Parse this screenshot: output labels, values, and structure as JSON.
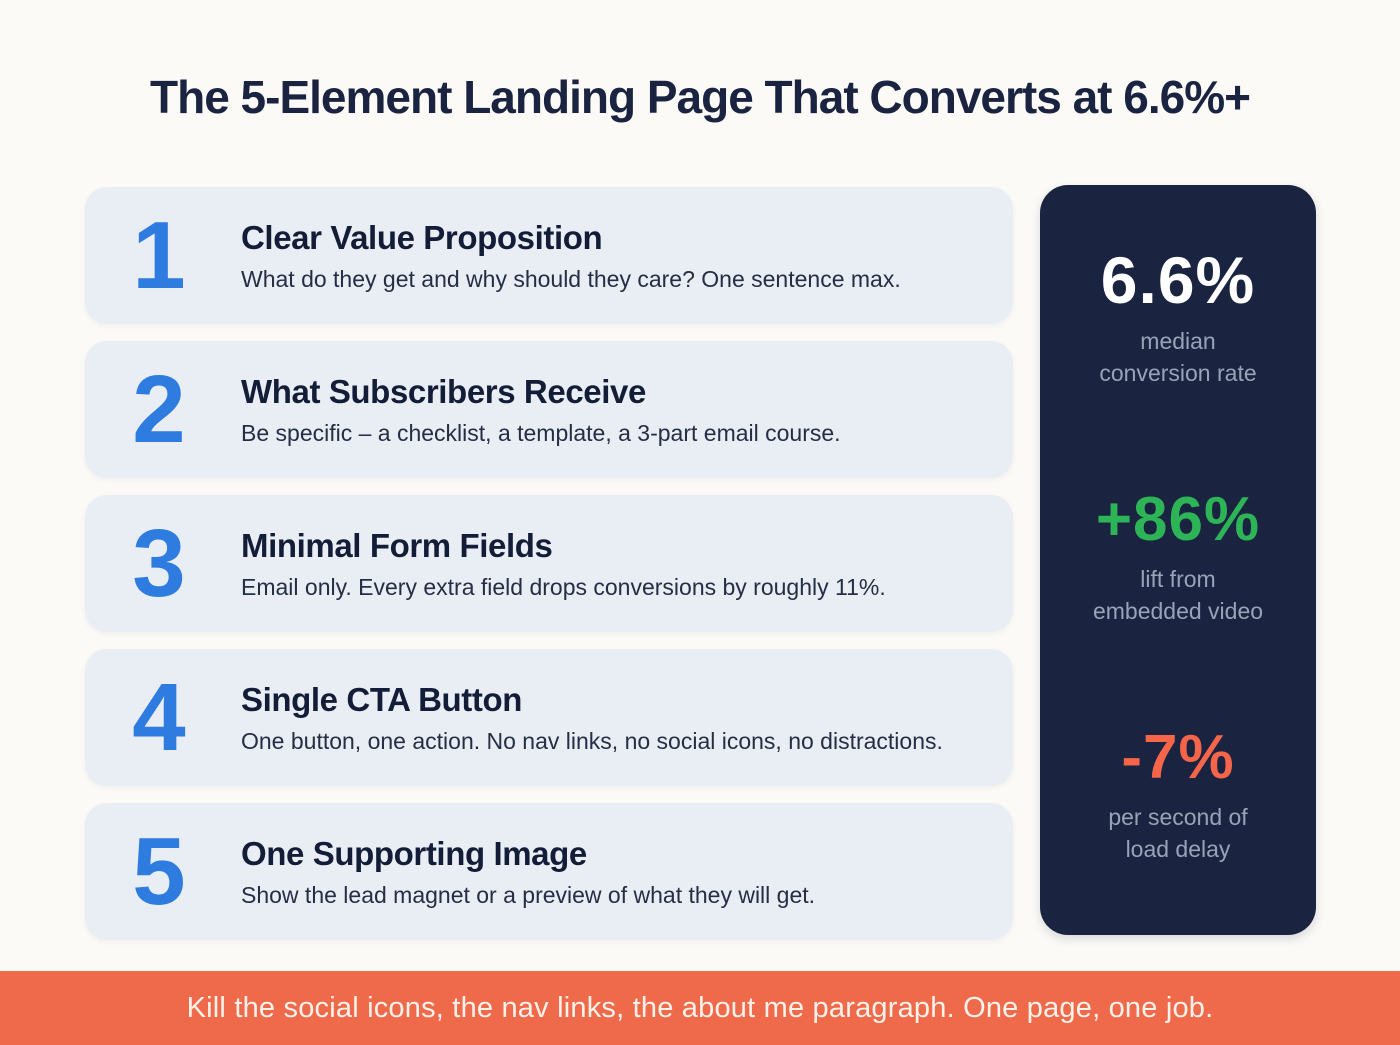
{
  "header": {
    "title": "The 5-Element Landing Page That Converts at 6.6%+"
  },
  "steps": [
    {
      "number": "1",
      "title": "Clear Value Proposition",
      "description": "What do they get and why should they care? One sentence max."
    },
    {
      "number": "2",
      "title": "What Subscribers Receive",
      "description": "Be specific – a checklist, a template, a 3-part email course."
    },
    {
      "number": "3",
      "title": "Minimal Form Fields",
      "description": "Email only. Every extra field drops conversions by roughly 11%."
    },
    {
      "number": "4",
      "title": "Single CTA Button",
      "description": "One button, one action. No nav links, no social icons, no distractions."
    },
    {
      "number": "5",
      "title": "One Supporting Image",
      "description": "Show the lead magnet or a preview of what they will get."
    }
  ],
  "stats_panel": {
    "stats": [
      {
        "value": "6.6%",
        "label": "median\nconversion rate",
        "color": "#ffffff"
      },
      {
        "value": "+86%",
        "label": "lift from\nembedded video",
        "color": "#2db457"
      },
      {
        "value": "-7%",
        "label": "per second of\nload delay",
        "color": "#f4654a"
      }
    ]
  },
  "footer": {
    "message": "Kill the social icons, the nav links, the about me paragraph. One page, one job."
  },
  "colors": {
    "navy": "#1a2340",
    "blue": "#2e7ce0",
    "green": "#2db457",
    "orange": "#f4654a",
    "footer_orange": "#ee6a4b",
    "card_bg": "#e9edf4",
    "page_bg": "#fbfaf7",
    "label_gray": "#99a3b7",
    "footer_text": "#fcf2ea"
  }
}
